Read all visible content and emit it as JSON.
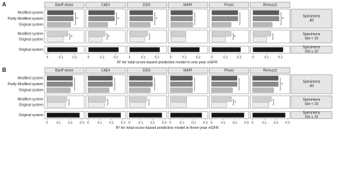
{
  "chart_data": [
    {
      "type": "bar",
      "panel": "A",
      "xlabel": "R² for total-score-based predictive model in one-year eGFR",
      "categories": [
        "Modified system",
        "Partly Modified system",
        "Original system",
        "Modified system",
        "Original system",
        "Original system"
      ],
      "row_colors": [
        "#5a5a5a",
        "#8a8a8a",
        "#b8b8b8",
        "#cfcfcf",
        "#ececec",
        "#161616"
      ],
      "groups": [
        {
          "label": [
            "Specimens",
            "All"
          ],
          "rows": [
            0,
            2
          ]
        },
        {
          "label": [
            "Specimens",
            "Glo < 10"
          ],
          "rows": [
            3,
            4
          ]
        },
        {
          "label": [
            "Specimens",
            "Glo ≥ 10"
          ],
          "rows": [
            5,
            5
          ]
        }
      ],
      "xlim": [
        -0.02,
        0.27
      ],
      "xticks": [
        0,
        0.1,
        0.2
      ],
      "facets": [
        {
          "name": "Banff donor",
          "values": [
            0.19,
            0.19,
            0.17,
            0.15,
            0.12,
            0.22
          ],
          "brackets": [
            {
              "rows": [
                0,
                2
              ],
              "label": "*"
            },
            {
              "rows": [
                3,
                4
              ],
              "label": "*"
            }
          ]
        },
        {
          "name": "CADI",
          "values": [
            0.19,
            0.19,
            0.14,
            0.12,
            0.1,
            0.22
          ],
          "brackets": [
            {
              "rows": [
                0,
                2
              ],
              "label": "*"
            },
            {
              "rows": [
                3,
                4
              ],
              "label": "*"
            }
          ]
        },
        {
          "name": "DDS",
          "values": [
            0.17,
            0.17,
            0.15,
            0.13,
            0.11,
            0.22
          ],
          "brackets": [
            {
              "rows": [
                0,
                2
              ],
              "label": "*"
            },
            {
              "rows": [
                3,
                4
              ]
            }
          ]
        },
        {
          "name": "MAPI",
          "values": [
            0.16,
            0.16,
            0.16,
            0.11,
            0.11,
            0.21
          ],
          "brackets": [
            {
              "rows": [
                0,
                2
              ]
            }
          ]
        },
        {
          "name": "Pirani",
          "values": [
            0.19,
            0.19,
            0.14,
            0.14,
            0.1,
            0.21
          ],
          "brackets": [
            {
              "rows": [
                0,
                2
              ]
            },
            {
              "rows": [
                3,
                4
              ],
              "label": "*"
            }
          ]
        },
        {
          "name": "Remuzzi",
          "values": [
            0.19,
            0.19,
            0.14,
            0.13,
            0.1,
            0.22
          ],
          "brackets": [
            {
              "rows": [
                0,
                2
              ],
              "label": "*"
            },
            {
              "rows": [
                3,
                4
              ]
            }
          ]
        }
      ]
    },
    {
      "type": "bar",
      "panel": "B",
      "xlabel": "R² for total-score-based predictive model in three-year eGFR",
      "categories": [
        "Modified system",
        "Partly Modified system",
        "Original system",
        "Modified system",
        "Original system",
        "Original system"
      ],
      "row_colors": [
        "#5a5a5a",
        "#8a8a8a",
        "#b8b8b8",
        "#cfcfcf",
        "#ececec",
        "#161616"
      ],
      "groups": [
        {
          "label": [
            "Specimens",
            "All"
          ],
          "rows": [
            0,
            2
          ]
        },
        {
          "label": [
            "Specimens",
            "Glo < 10"
          ],
          "rows": [
            3,
            4
          ]
        },
        {
          "label": [
            "Specimens",
            "Glo ≥ 10"
          ],
          "rows": [
            5,
            5
          ]
        }
      ],
      "xlim": [
        -0.02,
        0.32
      ],
      "xticks": [
        0,
        0.1,
        0.2,
        0.3
      ],
      "facets": [
        {
          "name": "Banff donor",
          "values": [
            0.22,
            0.22,
            0.2,
            0.17,
            0.16,
            0.28
          ],
          "brackets": [
            {
              "rows": [
                0,
                2
              ]
            },
            {
              "rows": [
                3,
                4
              ]
            }
          ]
        },
        {
          "name": "CADI",
          "values": [
            0.21,
            0.21,
            0.18,
            0.15,
            0.14,
            0.28
          ],
          "brackets": [
            {
              "rows": [
                0,
                2
              ]
            },
            {
              "rows": [
                3,
                4
              ]
            }
          ]
        },
        {
          "name": "DDS",
          "values": [
            0.2,
            0.2,
            0.18,
            0.15,
            0.14,
            0.28
          ],
          "brackets": [
            {
              "rows": [
                0,
                2
              ]
            },
            {
              "rows": [
                3,
                4
              ]
            }
          ]
        },
        {
          "name": "MAPI",
          "values": [
            0.19,
            0.19,
            0.19,
            0.14,
            0.14,
            0.27
          ],
          "brackets": [
            {
              "rows": [
                0,
                2
              ]
            }
          ]
        },
        {
          "name": "Pirani",
          "values": [
            0.22,
            0.22,
            0.18,
            0.17,
            0.13,
            0.28
          ],
          "brackets": [
            {
              "rows": [
                0,
                2
              ]
            },
            {
              "rows": [
                3,
                4
              ],
              "label": "*"
            }
          ]
        },
        {
          "name": "Remuzzi",
          "values": [
            0.22,
            0.22,
            0.18,
            0.16,
            0.14,
            0.28
          ],
          "brackets": [
            {
              "rows": [
                0,
                2
              ],
              "label": "*"
            },
            {
              "rows": [
                3,
                4
              ]
            }
          ]
        }
      ]
    }
  ]
}
